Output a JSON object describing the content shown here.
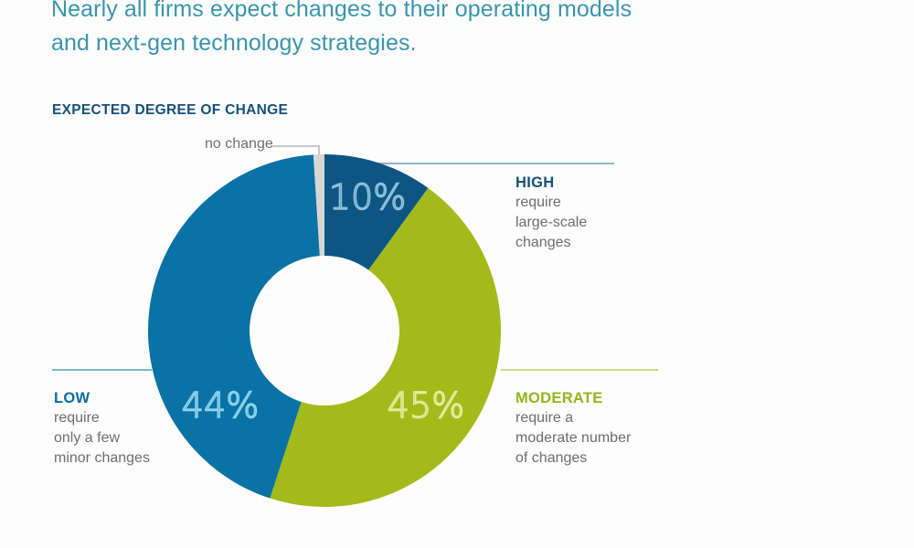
{
  "headline": "Nearly all firms expect changes to their operating models and next-gen technology strategies.",
  "chart_data": {
    "type": "pie",
    "variant": "donut",
    "title": "EXPECTED DEGREE OF CHANGE",
    "start_angle": "top",
    "direction": "clockwise",
    "slices": [
      {
        "key": "high",
        "name": "HIGH",
        "description": "require large-scale changes",
        "value": 10,
        "label": "10%",
        "color": "#0d5683",
        "text_color": "#8fc2db",
        "label_color": "#16507a",
        "line_color": "#8fb3c7"
      },
      {
        "key": "moderate",
        "name": "MODERATE",
        "description": "require a moderate number of changes",
        "value": 45,
        "label": "45%",
        "color": "#a2bb1a",
        "text_color": "#e2ec9e",
        "label_color": "#95b51c",
        "line_color": "#c6d98f"
      },
      {
        "key": "low",
        "name": "LOW",
        "description": "require only a few minor changes",
        "value": 44,
        "label": "44%",
        "color": "#0a72a5",
        "text_color": "#8fd3ee",
        "label_color": "#0b6e9c",
        "line_color": "#7bb6d0"
      },
      {
        "key": "no_change",
        "name": "no change",
        "description": "",
        "value": 1,
        "label": "",
        "color": "#d6d6d4",
        "text_color": "",
        "label_color": "#6f6f6f",
        "line_color": "#c8c8c8"
      }
    ],
    "unit": "%"
  },
  "labels": {
    "high": {
      "head": "HIGH",
      "lines": [
        "require",
        "large-scale",
        "changes"
      ]
    },
    "moderate": {
      "head": "MODERATE",
      "lines": [
        "require a",
        "moderate number",
        "of changes"
      ]
    },
    "low": {
      "head": "LOW",
      "lines": [
        "require",
        "only a few",
        "minor changes"
      ]
    },
    "no_change": "no change"
  }
}
